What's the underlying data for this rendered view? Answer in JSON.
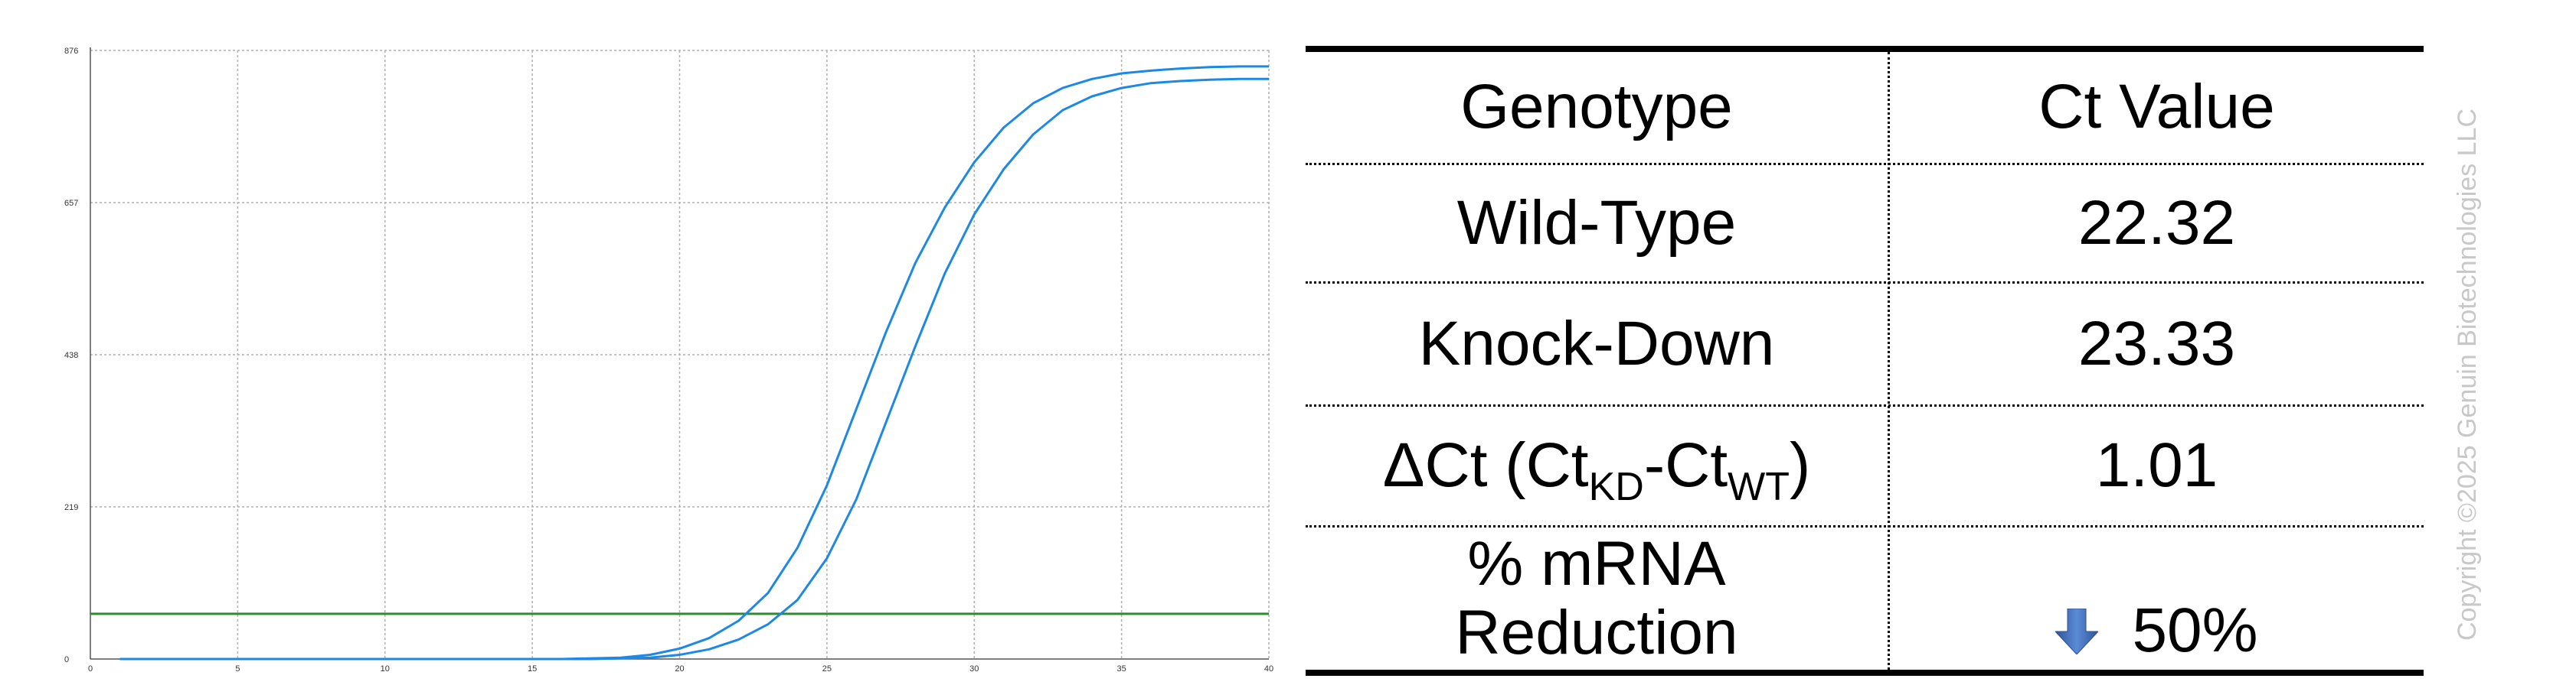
{
  "chart_data": {
    "type": "line",
    "x_ticks": [
      "0",
      "5",
      "10",
      "15",
      "20",
      "25",
      "30",
      "35",
      "40"
    ],
    "y_ticks": [
      "0",
      "219",
      "438",
      "657",
      "876"
    ],
    "xlim": [
      0,
      40
    ],
    "ylim": [
      0,
      876
    ],
    "grid": true,
    "threshold": 65,
    "series": [
      {
        "color": "#1e88e5",
        "x": [
          1,
          16,
          18,
          19,
          20,
          21,
          22,
          23,
          24,
          25,
          26,
          27,
          28,
          29,
          30,
          31,
          32,
          33,
          34,
          35,
          36,
          37,
          38,
          39,
          40
        ],
        "y": [
          0,
          0,
          2,
          6,
          15,
          30,
          55,
          95,
          160,
          250,
          360,
          470,
          570,
          650,
          715,
          765,
          800,
          822,
          835,
          843,
          847,
          850,
          852,
          853,
          853
        ]
      },
      {
        "color": "#1e88e5",
        "x": [
          1,
          17,
          19,
          20,
          21,
          22,
          23,
          24,
          25,
          26,
          27,
          28,
          29,
          30,
          31,
          32,
          33,
          34,
          35,
          36,
          37,
          38,
          39,
          40
        ],
        "y": [
          0,
          0,
          2,
          6,
          14,
          28,
          50,
          85,
          145,
          230,
          340,
          450,
          555,
          640,
          705,
          755,
          790,
          810,
          822,
          829,
          832,
          834,
          835,
          835
        ]
      }
    ],
    "threshold_color": "#2e8b2e",
    "grid_color": "#b0b0b0"
  },
  "table": {
    "header": {
      "col1": "Genotype",
      "col2": "Ct Value"
    },
    "wild_type": {
      "label": "Wild-Type",
      "value": "22.32"
    },
    "knock_down": {
      "label": "Knock-Down",
      "value": "23.33"
    },
    "delta": {
      "prefix": "ΔCt (Ct",
      "sub_kd": "KD",
      "dash": "-Ct",
      "sub_wt": "WT",
      "suffix": ")",
      "value": "1.01"
    },
    "reduction": {
      "line1": "% mRNA",
      "line2": "Reduction",
      "value": "50%",
      "icon": "down-arrow-icon",
      "icon_color": "#4472c4"
    }
  },
  "watermark": "Copyright ©2025 Genuin Biotechnologies LLC"
}
